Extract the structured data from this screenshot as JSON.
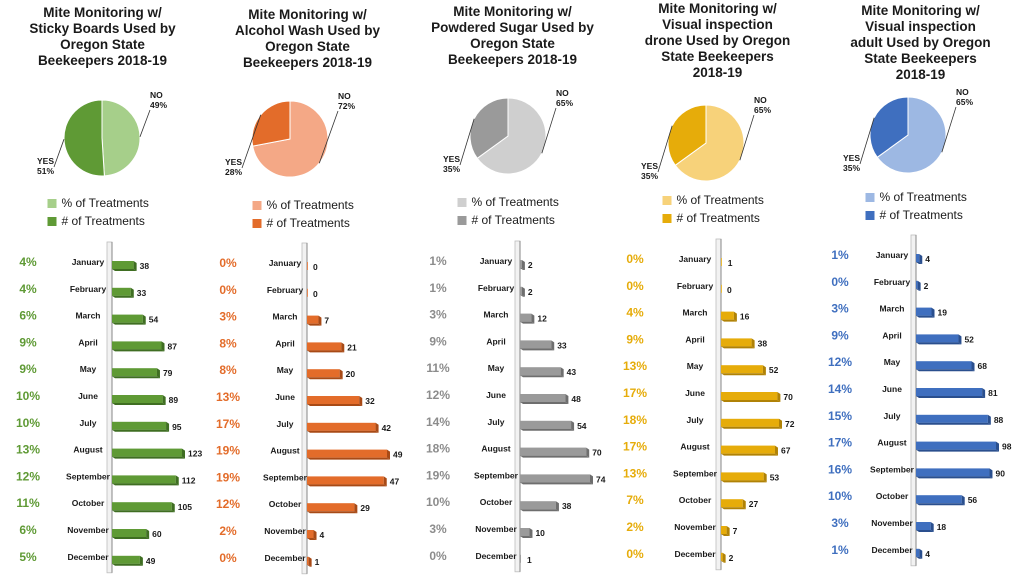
{
  "months": [
    "January",
    "February",
    "March",
    "April",
    "May",
    "June",
    "July",
    "August",
    "September",
    "October",
    "November",
    "December"
  ],
  "legend": {
    "pct": "% of Treatments",
    "count": "# of Treatments"
  },
  "chart_data": [
    {
      "type": "pie+bar",
      "title": "Mite Monitoring w/ Sticky Boards Used by Oregon State Beekeepers 2018-19",
      "colors": {
        "main": "#5f9a35",
        "dark": "#3f6e22",
        "light": "#a6cf8a",
        "pctText": "#5f9a35"
      },
      "pie": [
        {
          "label": "NO",
          "value": 49,
          "text": "49%"
        },
        {
          "label": "YES",
          "value": 51,
          "text": "51%"
        }
      ],
      "counts": [
        38,
        33,
        54,
        87,
        79,
        89,
        95,
        123,
        112,
        105,
        60,
        49
      ],
      "percents": [
        "4%",
        "4%",
        "6%",
        "9%",
        "9%",
        "10%",
        "10%",
        "13%",
        "12%",
        "11%",
        "6%",
        "5%"
      ]
    },
    {
      "type": "pie+bar",
      "title": "Mite Monitoring w/ Alcohol Wash Used by Oregon State Beekeepers 2018-19",
      "colors": {
        "main": "#e36c2a",
        "dark": "#a84a16",
        "light": "#f4a886",
        "pctText": "#e36c2a"
      },
      "pie": [
        {
          "label": "NO",
          "value": 72,
          "text": "72%"
        },
        {
          "label": "YES",
          "value": 28,
          "text": "28%"
        }
      ],
      "counts": [
        0,
        0,
        7,
        21,
        20,
        32,
        42,
        49,
        47,
        29,
        4,
        1
      ],
      "percents": [
        "0%",
        "0%",
        "3%",
        "8%",
        "8%",
        "13%",
        "17%",
        "19%",
        "19%",
        "12%",
        "2%",
        "0%"
      ]
    },
    {
      "type": "pie+bar",
      "title": "Mite Monitoring w/ Powdered Sugar Used by Oregon State Beekeepers 2018-19",
      "colors": {
        "main": "#9a9a9a",
        "dark": "#6e6e6e",
        "light": "#cfcfcf",
        "pctText": "#8c8c8c"
      },
      "pie": [
        {
          "label": "NO",
          "value": 65,
          "text": "65%"
        },
        {
          "label": "YES",
          "value": 35,
          "text": "35%"
        }
      ],
      "counts": [
        2,
        2,
        12,
        33,
        43,
        48,
        54,
        70,
        74,
        38,
        10,
        1
      ],
      "percents": [
        "1%",
        "1%",
        "3%",
        "9%",
        "11%",
        "12%",
        "14%",
        "18%",
        "19%",
        "10%",
        "3%",
        "0%"
      ]
    },
    {
      "type": "pie+bar",
      "title": "Mite Monitoring w/ Visual inspection drone Used by Oregon State Beekeepers 2018-19",
      "colors": {
        "main": "#e6ac0a",
        "dark": "#b08206",
        "light": "#f7d27a",
        "pctText": "#e6ac0a"
      },
      "pie": [
        {
          "label": "NO",
          "value": 65,
          "text": "65%"
        },
        {
          "label": "YES",
          "value": 35,
          "text": "35%"
        }
      ],
      "counts": [
        1,
        0,
        16,
        38,
        52,
        70,
        72,
        67,
        53,
        27,
        7,
        2
      ],
      "percents": [
        "0%",
        "0%",
        "4%",
        "9%",
        "13%",
        "17%",
        "18%",
        "17%",
        "13%",
        "7%",
        "2%",
        "0%"
      ]
    },
    {
      "type": "pie+bar",
      "title": "Mite Monitoring w/ Visual inspection adult Used by Oregon State Beekeepers 2018-19",
      "colors": {
        "main": "#3f6fbf",
        "dark": "#2a4f8e",
        "light": "#9db8e3",
        "pctText": "#3f6fbf"
      },
      "pie": [
        {
          "label": "NO",
          "value": 65,
          "text": "65%"
        },
        {
          "label": "YES",
          "value": 35,
          "text": "35%"
        }
      ],
      "counts": [
        4,
        2,
        19,
        52,
        68,
        81,
        88,
        98,
        90,
        56,
        18,
        4
      ],
      "percents": [
        "1%",
        "0%",
        "3%",
        "9%",
        "12%",
        "14%",
        "15%",
        "17%",
        "16%",
        "10%",
        "3%",
        "1%"
      ]
    }
  ]
}
